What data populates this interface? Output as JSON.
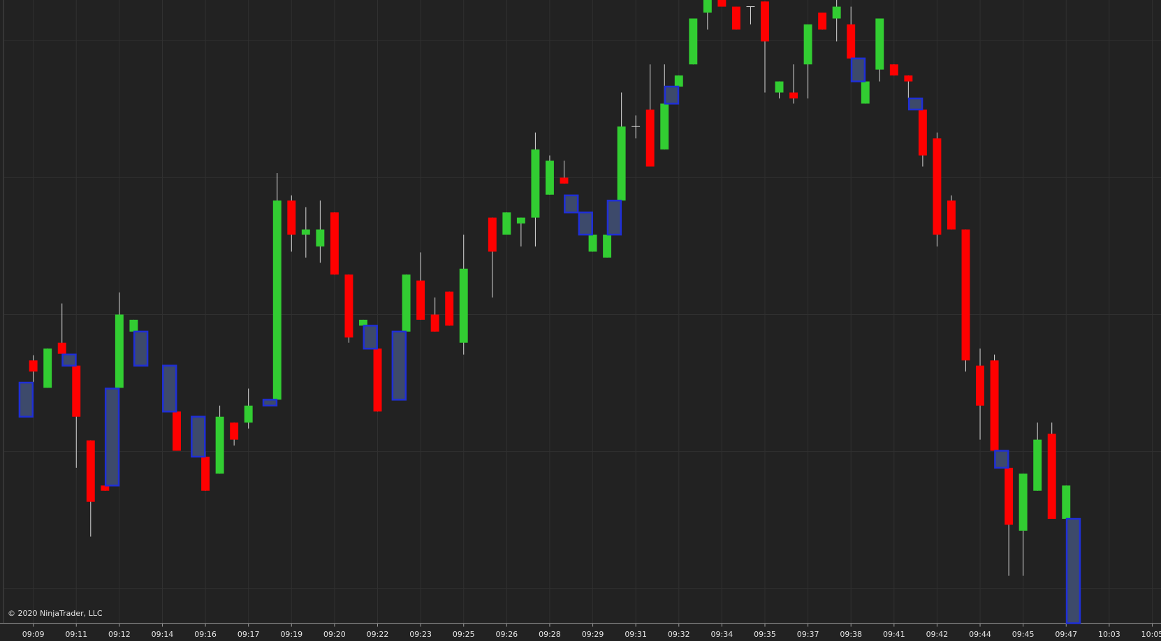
{
  "chart_data": {
    "type": "candlestick",
    "copyright": "© 2020 NinjaTrader, LLC",
    "grid": true,
    "xlim": [
      -2.32,
      78.61
    ],
    "ylim": [
      24,
      866
    ],
    "yticks": [
      71,
      256,
      441,
      626,
      811
    ],
    "xticks": [
      {
        "value": 0,
        "label": "09:09"
      },
      {
        "value": 3,
        "label": "09:11"
      },
      {
        "value": 6,
        "label": "09:12"
      },
      {
        "value": 9,
        "label": "09:14"
      },
      {
        "value": 12,
        "label": "09:16"
      },
      {
        "value": 15,
        "label": "09:17"
      },
      {
        "value": 18,
        "label": "09:19"
      },
      {
        "value": 21,
        "label": "09:20"
      },
      {
        "value": 24,
        "label": "09:22"
      },
      {
        "value": 27,
        "label": "09:23"
      },
      {
        "value": 30,
        "label": "09:25"
      },
      {
        "value": 33,
        "label": "09:26"
      },
      {
        "value": 36,
        "label": "09:28"
      },
      {
        "value": 39,
        "label": "09:29"
      },
      {
        "value": 42,
        "label": "09:31"
      },
      {
        "value": 45,
        "label": "09:32"
      },
      {
        "value": 48,
        "label": "09:34"
      },
      {
        "value": 51,
        "label": "09:35"
      },
      {
        "value": 54,
        "label": "09:37"
      },
      {
        "value": 57,
        "label": "09:38"
      },
      {
        "value": 60,
        "label": "09:41"
      },
      {
        "value": 63,
        "label": "09:42"
      },
      {
        "value": 66,
        "label": "09:44"
      },
      {
        "value": 69,
        "label": "09:45"
      },
      {
        "value": 72,
        "label": "09:47"
      },
      {
        "value": 75,
        "label": "10:03"
      },
      {
        "value": 78,
        "label": "10:05"
      }
    ],
    "candles": {
      "up_color": "#32cd32",
      "down_color": "#ff0000",
      "wick_color": "#d8d8d8",
      "x": [
        0,
        1,
        2,
        3,
        4,
        5,
        6,
        7,
        10,
        12,
        13,
        14,
        15,
        17,
        18,
        19,
        20,
        21,
        22,
        23,
        24,
        26,
        27,
        28,
        29,
        30,
        32,
        33,
        34,
        35,
        36,
        37,
        39,
        40,
        41,
        42,
        43,
        44,
        45,
        46,
        47,
        48,
        49,
        50,
        51,
        52,
        53,
        54,
        55,
        56,
        57,
        58,
        59,
        60,
        61,
        62,
        63,
        64,
        65,
        66,
        67,
        68,
        69,
        70,
        71,
        72
      ],
      "open": [
        379,
        342,
        403,
        372,
        271,
        210,
        342,
        418,
        310,
        249,
        226,
        295,
        295,
        326,
        595,
        549,
        533,
        579,
        495,
        426,
        395,
        418,
        487,
        441,
        472,
        403,
        572,
        549,
        564,
        572,
        603,
        626,
        526,
        518,
        595,
        695,
        718,
        664,
        749,
        779,
        849,
        866,
        857,
        857,
        864,
        741,
        741,
        779,
        849,
        841,
        833,
        726,
        772,
        779,
        764,
        718,
        679,
        595,
        556,
        372,
        379,
        234,
        149,
        203,
        280,
        165
      ],
      "high": [
        386,
        395,
        456,
        372,
        271,
        210,
        471,
        434,
        310,
        256,
        318,
        295,
        341,
        632,
        602,
        586,
        595,
        579,
        495,
        434,
        395,
        495,
        525,
        464,
        472,
        549,
        572,
        579,
        572,
        687,
        656,
        649,
        549,
        549,
        741,
        710,
        779,
        779,
        764,
        841,
        866,
        866,
        857,
        857,
        864,
        756,
        779,
        833,
        849,
        866,
        857,
        756,
        841,
        779,
        764,
        718,
        687,
        602,
        556,
        395,
        387,
        234,
        226,
        295,
        295,
        210
      ],
      "low": [
        349,
        342,
        388,
        234,
        141,
        203,
        342,
        418,
        257,
        203,
        226,
        264,
        287,
        326,
        526,
        518,
        511,
        495,
        403,
        426,
        310,
        418,
        434,
        418,
        426,
        387,
        464,
        549,
        533,
        533,
        603,
        618,
        526,
        518,
        595,
        679,
        641,
        664,
        749,
        779,
        826,
        857,
        826,
        833,
        741,
        733,
        726,
        733,
        826,
        810,
        787,
        726,
        756,
        764,
        733,
        641,
        533,
        556,
        364,
        272,
        257,
        88,
        88,
        203,
        165,
        165
      ],
      "close": [
        364,
        395,
        388,
        303,
        188,
        203,
        441,
        434,
        257,
        203,
        303,
        272,
        318,
        595,
        549,
        556,
        556,
        495,
        410,
        434,
        310,
        495,
        434,
        418,
        426,
        503,
        526,
        579,
        572,
        664,
        649,
        618,
        549,
        549,
        695,
        695,
        641,
        726,
        764,
        841,
        866,
        857,
        826,
        857,
        810,
        756,
        733,
        833,
        826,
        857,
        787,
        756,
        841,
        764,
        756,
        656,
        549,
        556,
        379,
        318,
        257,
        157,
        226,
        272,
        165,
        210
      ]
    },
    "painted": {
      "color": "#3d4a6b",
      "border_color": "#1f2fd6",
      "x": [
        -0.5,
        2.5,
        5.5,
        7.5,
        9.5,
        11.5,
        16.5,
        23.5,
        25.5,
        37.5,
        38.5,
        40.5,
        44.5,
        57.5,
        61.5,
        67.5,
        72.5
      ],
      "high": [
        349,
        387,
        341,
        418,
        372,
        303,
        326,
        426,
        418,
        602,
        579,
        595,
        749,
        787,
        733,
        257,
        165
      ],
      "low": [
        303,
        372,
        210,
        372,
        310,
        249,
        318,
        395,
        326,
        579,
        549,
        549,
        726,
        756,
        718,
        234,
        24
      ]
    }
  }
}
